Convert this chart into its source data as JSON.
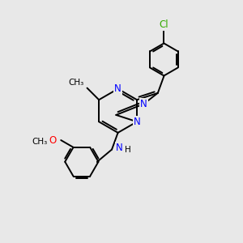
{
  "background_color": "#e8e8e8",
  "bond_color": "#000000",
  "nitrogen_color": "#0000ff",
  "oxygen_color": "#ff0000",
  "chlorine_color": "#33aa00",
  "text_color_black": "#000000",
  "line_width": 1.4,
  "figsize": [
    3.0,
    3.0
  ],
  "dpi": 100,
  "xlim": [
    0,
    10
  ],
  "ylim": [
    0,
    10
  ]
}
